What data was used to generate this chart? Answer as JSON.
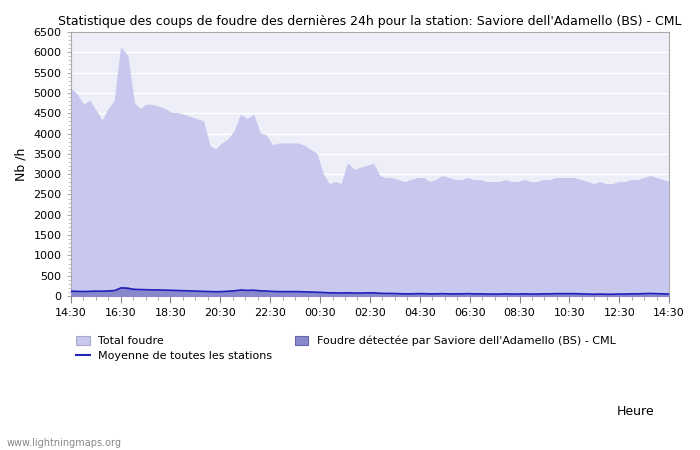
{
  "title": "Statistique des coups de foudre des dernières 24h pour la station: Saviore dell'Adamello (BS) - CML",
  "ylabel": "Nb /h",
  "xlabel": "Heure",
  "watermark": "www.lightningmaps.org",
  "ylim": [
    0,
    6500
  ],
  "yticks": [
    0,
    500,
    1000,
    1500,
    2000,
    2500,
    3000,
    3500,
    4000,
    4500,
    5000,
    5500,
    6000,
    6500
  ],
  "xtick_labels": [
    "14:30",
    "16:30",
    "18:30",
    "20:30",
    "22:30",
    "00:30",
    "02:30",
    "04:30",
    "06:30",
    "08:30",
    "10:30",
    "12:30",
    "14:30"
  ],
  "background_color": "#ffffff",
  "plot_bg_color": "#eeeef8",
  "fill_total_color": "#c8c8ee",
  "fill_detected_color": "#8888cc",
  "line_mean_color": "#2222bb",
  "legend_labels": [
    "Total foudre",
    "Moyenne de toutes les stations",
    "Foudre détectée par Saviore dell'Adamello (BS) - CML"
  ],
  "total_foudre": [
    5100,
    4950,
    4700,
    4800,
    4550,
    4300,
    4600,
    4800,
    6100,
    5900,
    4750,
    4600,
    4700,
    4700,
    4650,
    4600,
    4500,
    4500,
    4450,
    4400,
    4350,
    4300,
    3700,
    3600,
    3750,
    3850,
    4050,
    4450,
    4350,
    4450,
    4000,
    3950,
    3700,
    3750,
    3750,
    3750,
    3750,
    3700,
    3600,
    3500,
    3000,
    2750,
    2800,
    2750,
    3250,
    3100,
    3150,
    3200,
    3250,
    2950,
    2900,
    2900,
    2850,
    2800,
    2850,
    2900,
    2900,
    2800,
    2850,
    2950,
    2900,
    2850,
    2850,
    2900,
    2850,
    2850,
    2800,
    2800,
    2800,
    2850,
    2800,
    2800,
    2850,
    2800,
    2800,
    2850,
    2850,
    2900,
    2900,
    2900,
    2900,
    2850,
    2800,
    2750,
    2800,
    2750,
    2750,
    2800,
    2800,
    2850,
    2850,
    2900,
    2950,
    2900,
    2850,
    2800
  ],
  "foudre_detected": [
    120,
    110,
    105,
    115,
    125,
    120,
    130,
    140,
    220,
    210,
    170,
    165,
    160,
    155,
    150,
    145,
    140,
    135,
    130,
    125,
    120,
    115,
    110,
    105,
    110,
    120,
    130,
    150,
    140,
    145,
    130,
    125,
    115,
    110,
    110,
    110,
    110,
    105,
    100,
    95,
    90,
    80,
    80,
    75,
    80,
    75,
    75,
    80,
    80,
    70,
    65,
    65,
    60,
    55,
    55,
    60,
    60,
    55,
    55,
    60,
    55,
    55,
    55,
    60,
    55,
    55,
    50,
    50,
    50,
    55,
    50,
    50,
    55,
    50,
    50,
    55,
    55,
    60,
    60,
    60,
    60,
    55,
    50,
    45,
    50,
    45,
    45,
    50,
    50,
    55,
    55,
    60,
    65,
    60,
    55,
    50
  ],
  "moyenne": [
    120,
    115,
    110,
    115,
    120,
    118,
    125,
    135,
    200,
    190,
    165,
    160,
    155,
    150,
    148,
    145,
    140,
    135,
    130,
    125,
    120,
    115,
    110,
    105,
    108,
    118,
    128,
    148,
    138,
    143,
    128,
    123,
    113,
    108,
    108,
    108,
    108,
    103,
    98,
    93,
    88,
    78,
    78,
    73,
    78,
    73,
    73,
    78,
    78,
    68,
    63,
    63,
    58,
    53,
    53,
    58,
    58,
    53,
    53,
    58,
    53,
    53,
    53,
    58,
    53,
    53,
    48,
    48,
    48,
    53,
    48,
    48,
    53,
    48,
    48,
    53,
    53,
    58,
    58,
    58,
    58,
    53,
    48,
    43,
    48,
    43,
    43,
    48,
    48,
    53,
    53,
    58,
    63,
    58,
    53,
    48
  ]
}
